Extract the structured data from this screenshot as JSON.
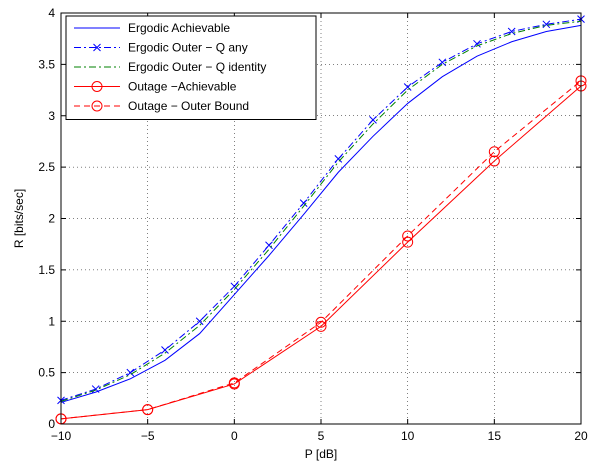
{
  "chart_data": {
    "type": "line",
    "xlabel": "P [dB]",
    "ylabel": "R [bits/sec]",
    "xlim": [
      -10,
      20
    ],
    "ylim": [
      0,
      4
    ],
    "xticks": [
      -10,
      -5,
      0,
      5,
      10,
      15,
      20
    ],
    "yticks": [
      0,
      0.5,
      1,
      1.5,
      2,
      2.5,
      3,
      3.5,
      4
    ],
    "xtick_labels": [
      "−10",
      "−5",
      "0",
      "5",
      "10",
      "15",
      "20"
    ],
    "ytick_labels": [
      "0",
      "0.5",
      "1",
      "1.5",
      "2",
      "2.5",
      "3",
      "3.5",
      "4"
    ],
    "grid": true,
    "legend_position": "top-left",
    "series": [
      {
        "name": "Ergodic Achievable",
        "color": "#0000ff",
        "style": "solid",
        "marker": "none",
        "x": [
          -10,
          -8,
          -6,
          -4,
          -2,
          0,
          2,
          4,
          6,
          8,
          10,
          12,
          14,
          16,
          18,
          20
        ],
        "y": [
          0.21,
          0.31,
          0.44,
          0.62,
          0.88,
          1.26,
          1.64,
          2.04,
          2.45,
          2.8,
          3.12,
          3.38,
          3.58,
          3.72,
          3.82,
          3.88
        ]
      },
      {
        "name": "Ergodic  Outer − Q any",
        "color": "#0000ff",
        "style": "dashdot",
        "marker": "x",
        "x": [
          -10,
          -8,
          -6,
          -4,
          -2,
          0,
          2,
          4,
          6,
          8,
          10,
          12,
          14,
          16,
          18,
          20
        ],
        "y": [
          0.23,
          0.34,
          0.5,
          0.72,
          1.0,
          1.34,
          1.74,
          2.15,
          2.58,
          2.96,
          3.28,
          3.52,
          3.7,
          3.82,
          3.89,
          3.94
        ]
      },
      {
        "name": "Ergodic Outer − Q identity",
        "color": "#008000",
        "style": "dashdot",
        "marker": "none",
        "x": [
          -10,
          -8,
          -6,
          -4,
          -2,
          0,
          2,
          4,
          6,
          8,
          10,
          12,
          14,
          16,
          18,
          20
        ],
        "y": [
          0.22,
          0.33,
          0.48,
          0.69,
          0.96,
          1.31,
          1.7,
          2.12,
          2.55,
          2.92,
          3.25,
          3.5,
          3.68,
          3.8,
          3.88,
          3.92
        ]
      },
      {
        "name": "Outage −Achievable",
        "color": "#ff0000",
        "style": "solid",
        "marker": "o",
        "x": [
          -10,
          -5,
          0,
          5,
          10,
          15,
          20
        ],
        "y": [
          0.05,
          0.14,
          0.39,
          0.95,
          1.77,
          2.56,
          3.29
        ]
      },
      {
        "name": "Outage − Outer Bound",
        "color": "#ff0000",
        "style": "dashed",
        "marker": "o",
        "x": [
          -10,
          -5,
          0,
          5,
          10,
          15,
          20
        ],
        "y": [
          0.05,
          0.14,
          0.4,
          0.99,
          1.83,
          2.65,
          3.34
        ]
      }
    ]
  }
}
